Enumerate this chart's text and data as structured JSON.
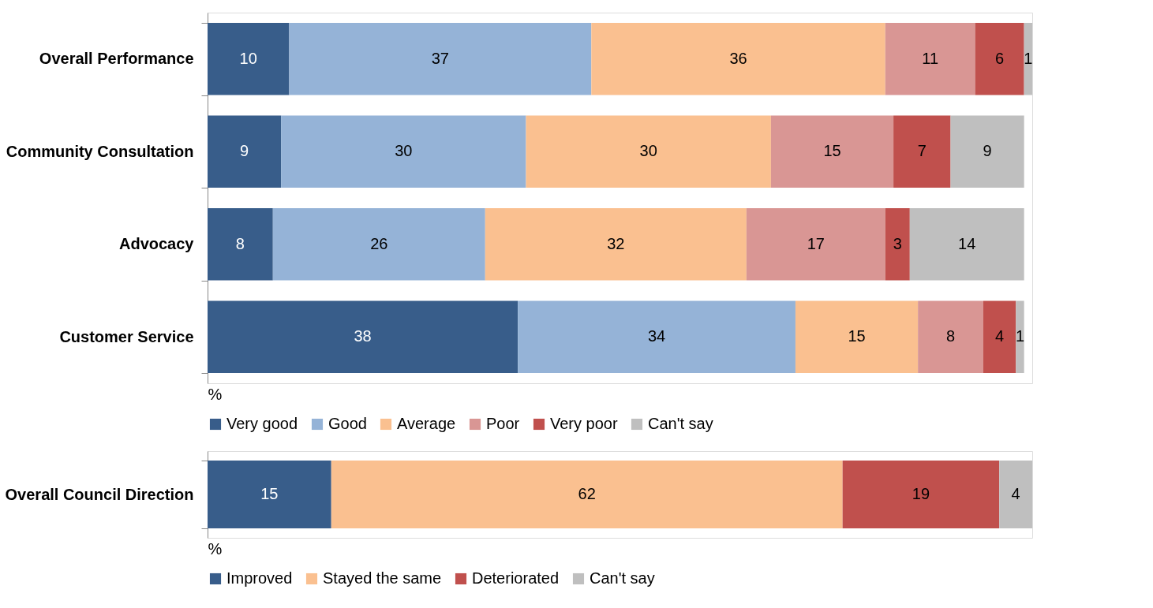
{
  "chart_data": [
    {
      "type": "bar",
      "orientation": "horizontal",
      "stacked": true,
      "xlabel": "%",
      "categories": [
        "Overall Performance",
        "Community Consultation",
        "Advocacy",
        "Customer Service"
      ],
      "data_labels": true,
      "legend": "bottom",
      "grid": false,
      "tick_labels": "y",
      "series": [
        {
          "name": "Very good",
          "color": "#385d8a",
          "values": [
            10,
            9,
            8,
            38
          ]
        },
        {
          "name": "Good",
          "color": "#95b3d7",
          "values": [
            37,
            30,
            26,
            34
          ]
        },
        {
          "name": "Average",
          "color": "#fac090",
          "values": [
            36,
            30,
            32,
            15
          ]
        },
        {
          "name": "Poor",
          "color": "#d99694",
          "values": [
            11,
            15,
            17,
            8
          ]
        },
        {
          "name": "Very poor",
          "color": "#c0504d",
          "values": [
            6,
            7,
            3,
            4
          ]
        },
        {
          "name": "Can't say",
          "color": "#bfbfbf",
          "values": [
            1,
            9,
            14,
            1
          ]
        }
      ]
    },
    {
      "type": "bar",
      "orientation": "horizontal",
      "stacked": true,
      "xlabel": "%",
      "categories": [
        "Overall Council Direction"
      ],
      "data_labels": true,
      "legend": "bottom",
      "grid": false,
      "tick_labels": "y",
      "series": [
        {
          "name": "Improved",
          "color": "#385d8a",
          "values": [
            15
          ]
        },
        {
          "name": "Stayed the same",
          "color": "#fac090",
          "values": [
            62
          ]
        },
        {
          "name": "Deteriorated",
          "color": "#c0504d",
          "values": [
            19
          ]
        },
        {
          "name": "Can't say",
          "color": "#bfbfbf",
          "values": [
            4
          ]
        }
      ]
    }
  ]
}
